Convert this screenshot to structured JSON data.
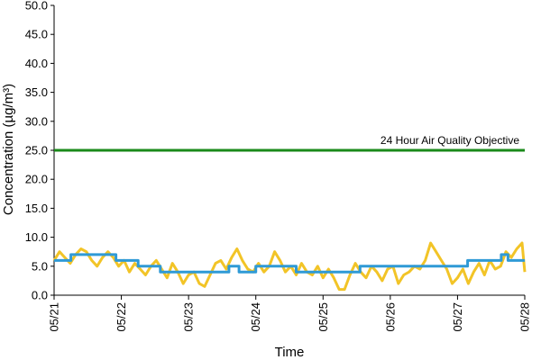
{
  "chart_data": {
    "type": "line",
    "title": "",
    "xlabel": "Time",
    "ylabel": "Concentration (µg/m³)",
    "ylim": [
      0,
      50
    ],
    "yticks": [
      "0.0",
      "5.0",
      "10.0",
      "15.0",
      "20.0",
      "25.0",
      "30.0",
      "35.0",
      "40.0",
      "45.0",
      "50.0"
    ],
    "xticks": [
      "05/21",
      "05/22",
      "05/23",
      "05/24",
      "05/25",
      "05/26",
      "05/27",
      "05/28"
    ],
    "grid": false,
    "legend": "none",
    "objective": {
      "label": "24 Hour Air Quality Objective",
      "value": 25,
      "color": "#1a8a1a"
    },
    "series": [
      {
        "color": "#f2c427",
        "x_days": [
          0,
          0.08,
          0.16,
          0.24,
          0.32,
          0.4,
          0.48,
          0.56,
          0.64,
          0.72,
          0.8,
          0.88,
          0.96,
          1.04,
          1.12,
          1.2,
          1.28,
          1.36,
          1.44,
          1.52,
          1.6,
          1.68,
          1.76,
          1.84,
          1.92,
          2.0,
          2.08,
          2.16,
          2.24,
          2.32,
          2.4,
          2.48,
          2.56,
          2.64,
          2.72,
          2.8,
          2.88,
          2.96,
          3.04,
          3.12,
          3.2,
          3.28,
          3.36,
          3.44,
          3.52,
          3.6,
          3.68,
          3.76,
          3.84,
          3.92,
          4.0,
          4.08,
          4.16,
          4.24,
          4.32,
          4.4,
          4.48,
          4.56,
          4.64,
          4.72,
          4.8,
          4.88,
          4.96,
          5.04,
          5.12,
          5.2,
          5.28,
          5.36,
          5.44,
          5.52,
          5.6,
          5.68,
          5.76,
          5.84,
          5.92,
          6.0,
          6.08,
          6.16,
          6.24,
          6.32,
          6.4,
          6.48,
          6.56,
          6.64,
          6.72,
          6.8,
          6.88,
          6.96,
          7.0
        ],
        "values": [
          6.0,
          7.5,
          6.5,
          5.5,
          7.0,
          8.0,
          7.5,
          6.0,
          5.0,
          6.5,
          7.5,
          6.5,
          5.0,
          6.0,
          4.0,
          5.5,
          4.5,
          3.5,
          5.0,
          6.0,
          4.5,
          3.0,
          5.5,
          4.0,
          2.0,
          3.5,
          4.0,
          2.0,
          1.5,
          3.5,
          5.5,
          6.0,
          4.5,
          6.5,
          8.0,
          6.0,
          4.5,
          4.0,
          5.5,
          4.0,
          5.0,
          7.5,
          6.0,
          4.0,
          5.0,
          3.5,
          5.5,
          4.0,
          3.5,
          5.0,
          3.0,
          4.5,
          3.0,
          1.0,
          1.0,
          3.5,
          5.5,
          4.0,
          3.0,
          5.0,
          4.0,
          2.5,
          4.5,
          5.0,
          2.0,
          3.5,
          4.0,
          5.0,
          4.5,
          6.0,
          9.0,
          7.5,
          6.0,
          4.5,
          2.0,
          3.0,
          4.5,
          2.0,
          4.0,
          5.5,
          3.5,
          6.0,
          4.5,
          5.0,
          7.5,
          6.5,
          8.0,
          9.0,
          4.0
        ]
      },
      {
        "color": "#2f9ad6",
        "x_days": [
          0,
          0.25,
          0.25,
          0.92,
          0.92,
          1.25,
          1.25,
          1.58,
          1.58,
          2.6,
          2.6,
          2.75,
          2.75,
          3.0,
          3.0,
          3.6,
          3.6,
          4.0,
          4.0,
          4.55,
          4.55,
          5.0,
          5.0,
          5.5,
          5.5,
          5.85,
          5.85,
          6.15,
          6.15,
          6.5,
          6.5,
          6.65,
          6.65,
          6.75,
          6.75,
          6.85,
          6.85,
          7.0
        ],
        "values": [
          6,
          6,
          7,
          7,
          6,
          6,
          5,
          5,
          4,
          4,
          5,
          5,
          4,
          4,
          5,
          5,
          4,
          4,
          4,
          4,
          5,
          5,
          5,
          5,
          5,
          5,
          5,
          5,
          6,
          6,
          6,
          6,
          7,
          7,
          6,
          6,
          6,
          6
        ]
      }
    ]
  }
}
